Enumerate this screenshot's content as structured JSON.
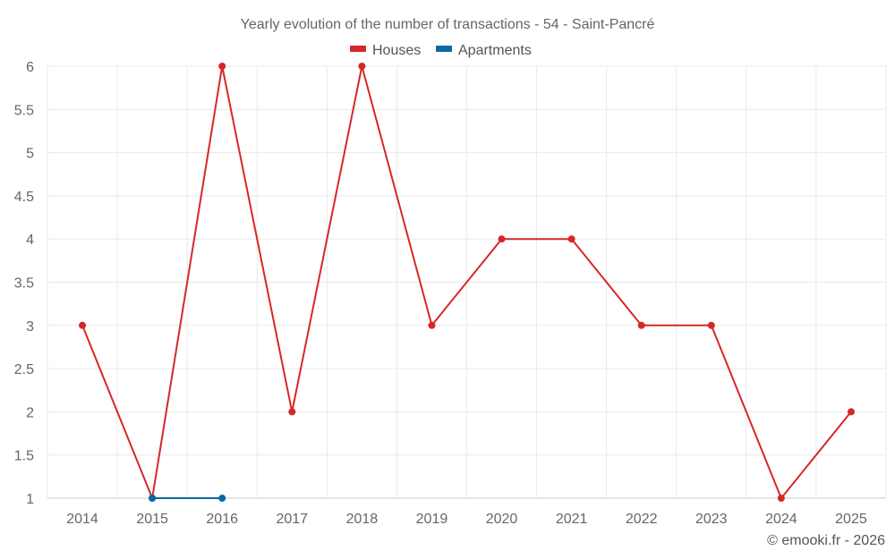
{
  "chart_data": {
    "type": "line",
    "title": "Yearly evolution of the number of transactions - 54 - Saint-Pancré",
    "categories": [
      "2014",
      "2015",
      "2016",
      "2017",
      "2018",
      "2019",
      "2020",
      "2021",
      "2022",
      "2023",
      "2024",
      "2025"
    ],
    "y_ticks": [
      "1",
      "1.5",
      "2",
      "2.5",
      "3",
      "3.5",
      "4",
      "4.5",
      "5",
      "5.5",
      "6"
    ],
    "ylim": [
      1,
      6
    ],
    "grid": true,
    "legend_position": "top-center",
    "series": [
      {
        "name": "Houses",
        "color": "#d62728",
        "values": [
          3,
          1,
          6,
          2,
          6,
          3,
          4,
          4,
          3,
          3,
          1,
          2
        ]
      },
      {
        "name": "Apartments",
        "color": "#0a6aa1",
        "values": [
          null,
          1,
          1,
          null,
          null,
          null,
          null,
          null,
          null,
          null,
          null,
          null
        ]
      }
    ]
  },
  "credit": "© emooki.fr - 2026"
}
